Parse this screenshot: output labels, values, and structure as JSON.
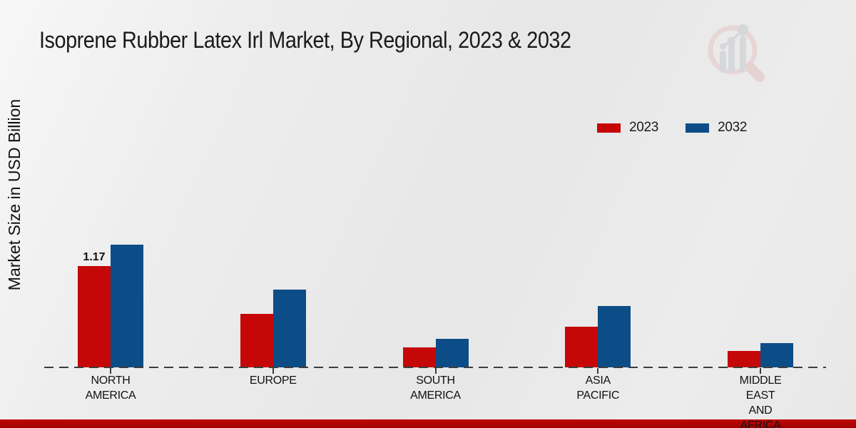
{
  "title": "Isoprene Rubber Latex Irl Market, By Regional, 2023 & 2032",
  "ylabel": "Market Size in USD Billion",
  "colors": {
    "series_2023": "#c50707",
    "series_2032": "#0c4d87",
    "axis_line": "#3c3c3c",
    "footer_bar": "#b90404",
    "text": "#1a1a1a"
  },
  "legend": {
    "items": [
      {
        "label": "2023",
        "color": "#c50707"
      },
      {
        "label": "2032",
        "color": "#0c4d87"
      }
    ],
    "position": "upper right"
  },
  "watermark": {
    "icon": "bar-chart-magnifier-logo"
  },
  "chart_data": {
    "type": "bar",
    "title": "Isoprene Rubber Latex Irl Market, By Regional, 2023 & 2032",
    "xlabel": "",
    "ylabel": "Market Size in USD Billion",
    "categories": [
      "NORTH AMERICA",
      "EUROPE",
      "SOUTH AMERICA",
      "ASIA PACIFIC",
      "MIDDLE EAST AND AFRICA"
    ],
    "series": [
      {
        "name": "2023",
        "color": "#c50707",
        "values": [
          1.17,
          0.62,
          0.23,
          0.47,
          0.19
        ]
      },
      {
        "name": "2032",
        "color": "#0c4d87",
        "values": [
          1.42,
          0.9,
          0.33,
          0.71,
          0.28
        ]
      }
    ],
    "annotations": [
      {
        "series_index": 0,
        "category_index": 0,
        "text": "1.17"
      }
    ],
    "ylim": [
      0,
      1.5
    ],
    "grid": false,
    "y_axis_ticks_visible": false,
    "baseline_style": "dashed",
    "legend_position": "upper right"
  }
}
